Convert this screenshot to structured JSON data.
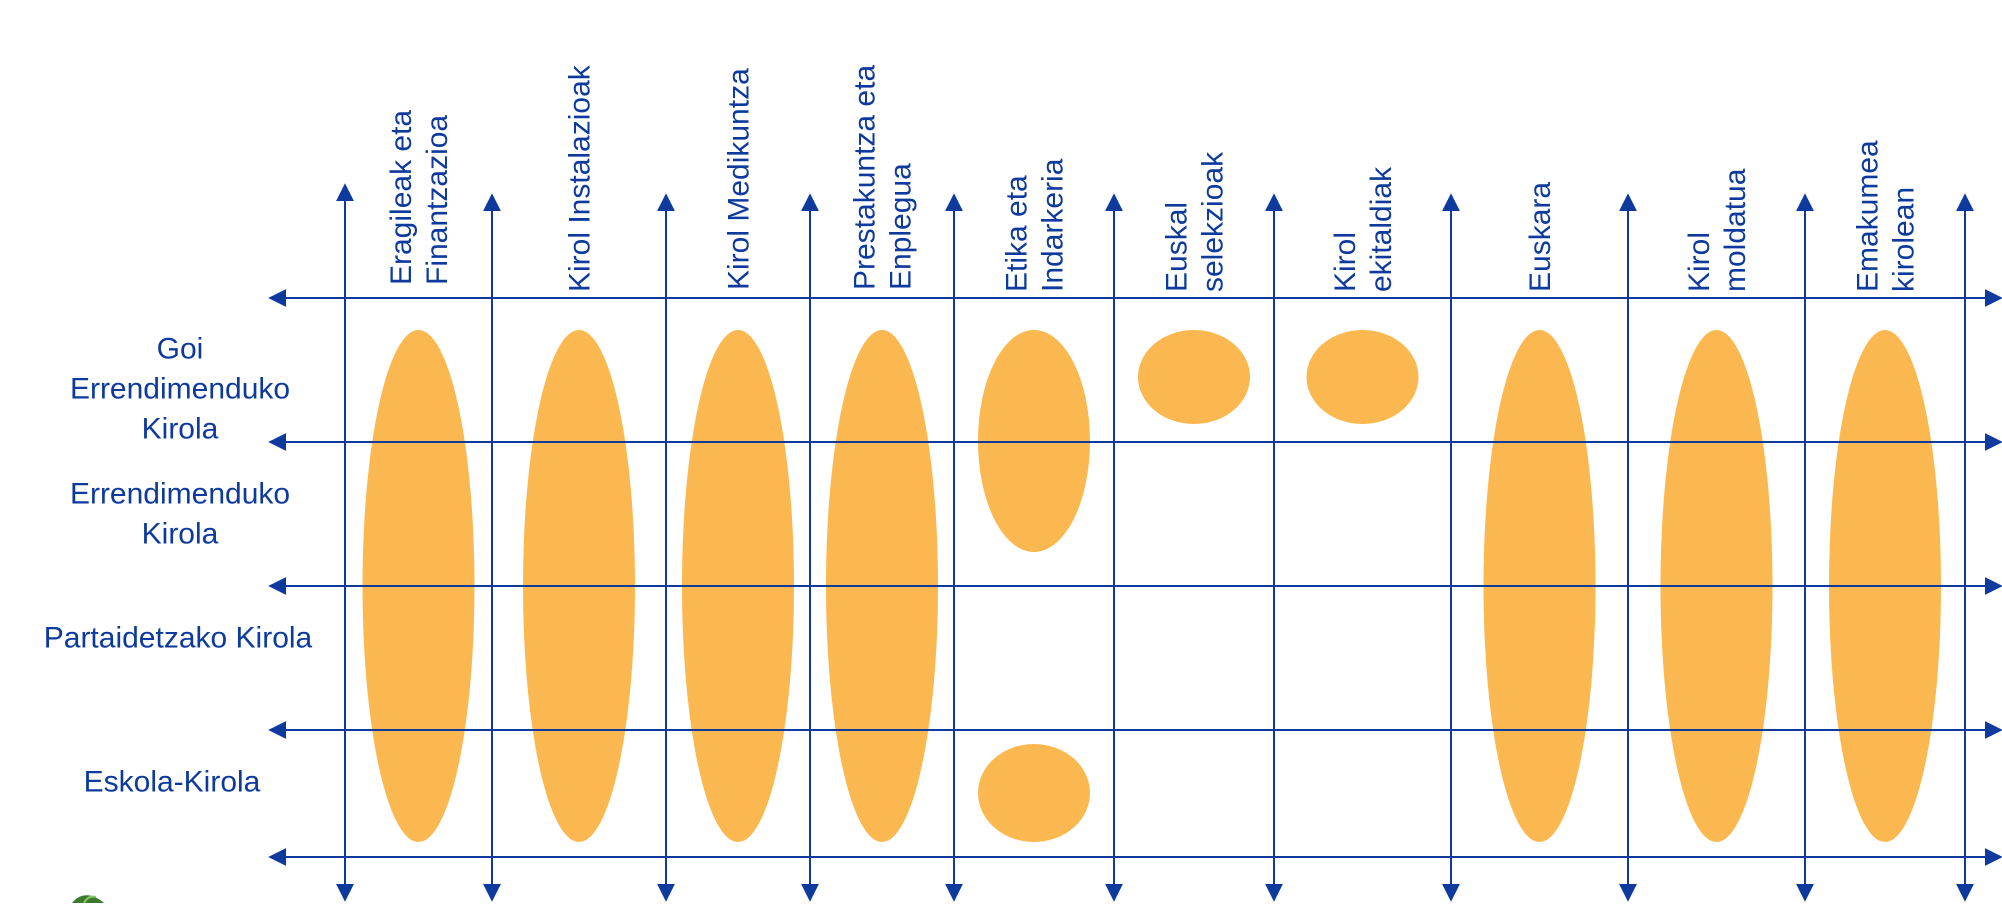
{
  "columns": [
    {
      "id": "eragileak",
      "lines": [
        "Eragileak eta",
        "Finantzazioa"
      ]
    },
    {
      "id": "instalazioak",
      "lines": [
        "Kirol Instalazioak"
      ]
    },
    {
      "id": "medikuntza",
      "lines": [
        "Kirol Medikuntza"
      ]
    },
    {
      "id": "prestakuntza",
      "lines": [
        "Prestakuntza eta",
        "Enplegua"
      ]
    },
    {
      "id": "etika",
      "lines": [
        "Etika eta",
        "Indarkeria"
      ]
    },
    {
      "id": "selekzioak",
      "lines": [
        "Euskal",
        "selekzioak"
      ]
    },
    {
      "id": "ekitaldiak",
      "lines": [
        "Kirol",
        "ekitaldiak"
      ]
    },
    {
      "id": "euskara",
      "lines": [
        "Euskara"
      ]
    },
    {
      "id": "moldatua",
      "lines": [
        "Kirol",
        "moldatua"
      ]
    },
    {
      "id": "emakumea",
      "lines": [
        "Emakumea",
        "kirolean"
      ]
    }
  ],
  "rows": [
    {
      "id": "goi",
      "lines": [
        "Goi",
        "Errendimenduko",
        "Kirola"
      ]
    },
    {
      "id": "errendimendu",
      "lines": [
        "Errendimenduko",
        "Kirola"
      ]
    },
    {
      "id": "partaidetza",
      "lines": [
        "Partaidetzako Kirola"
      ]
    },
    {
      "id": "eskola",
      "lines": [
        "Eskola-Kirola"
      ]
    }
  ],
  "coverage": [
    {
      "column": "eragileak",
      "rows": [
        "goi",
        "errendimendu",
        "partaidetza",
        "eskola"
      ]
    },
    {
      "column": "instalazioak",
      "rows": [
        "goi",
        "errendimendu",
        "partaidetza",
        "eskola"
      ]
    },
    {
      "column": "medikuntza",
      "rows": [
        "goi",
        "errendimendu",
        "partaidetza",
        "eskola"
      ]
    },
    {
      "column": "prestakuntza",
      "rows": [
        "goi",
        "errendimendu",
        "partaidetza",
        "eskola"
      ]
    },
    {
      "column": "etika",
      "rows": [
        "goi",
        "errendimendu"
      ]
    },
    {
      "column": "etika",
      "rows": [
        "eskola"
      ]
    },
    {
      "column": "selekzioak",
      "rows": [
        "goi"
      ]
    },
    {
      "column": "ekitaldiak",
      "rows": [
        "goi"
      ]
    },
    {
      "column": "euskara",
      "rows": [
        "goi",
        "errendimendu",
        "partaidetza",
        "eskola"
      ]
    },
    {
      "column": "moldatua",
      "rows": [
        "goi",
        "errendimendu",
        "partaidetza",
        "eskola"
      ]
    },
    {
      "column": "emakumea",
      "rows": [
        "goi",
        "errendimendu",
        "partaidetza",
        "eskola"
      ]
    }
  ],
  "colors": {
    "axis": "#0d3a9c",
    "text": "#0d3a9c",
    "ellipse": "#fbb850",
    "background": "#ffffff"
  },
  "decor": {
    "corner_logo": "leaf-logo-icon"
  }
}
